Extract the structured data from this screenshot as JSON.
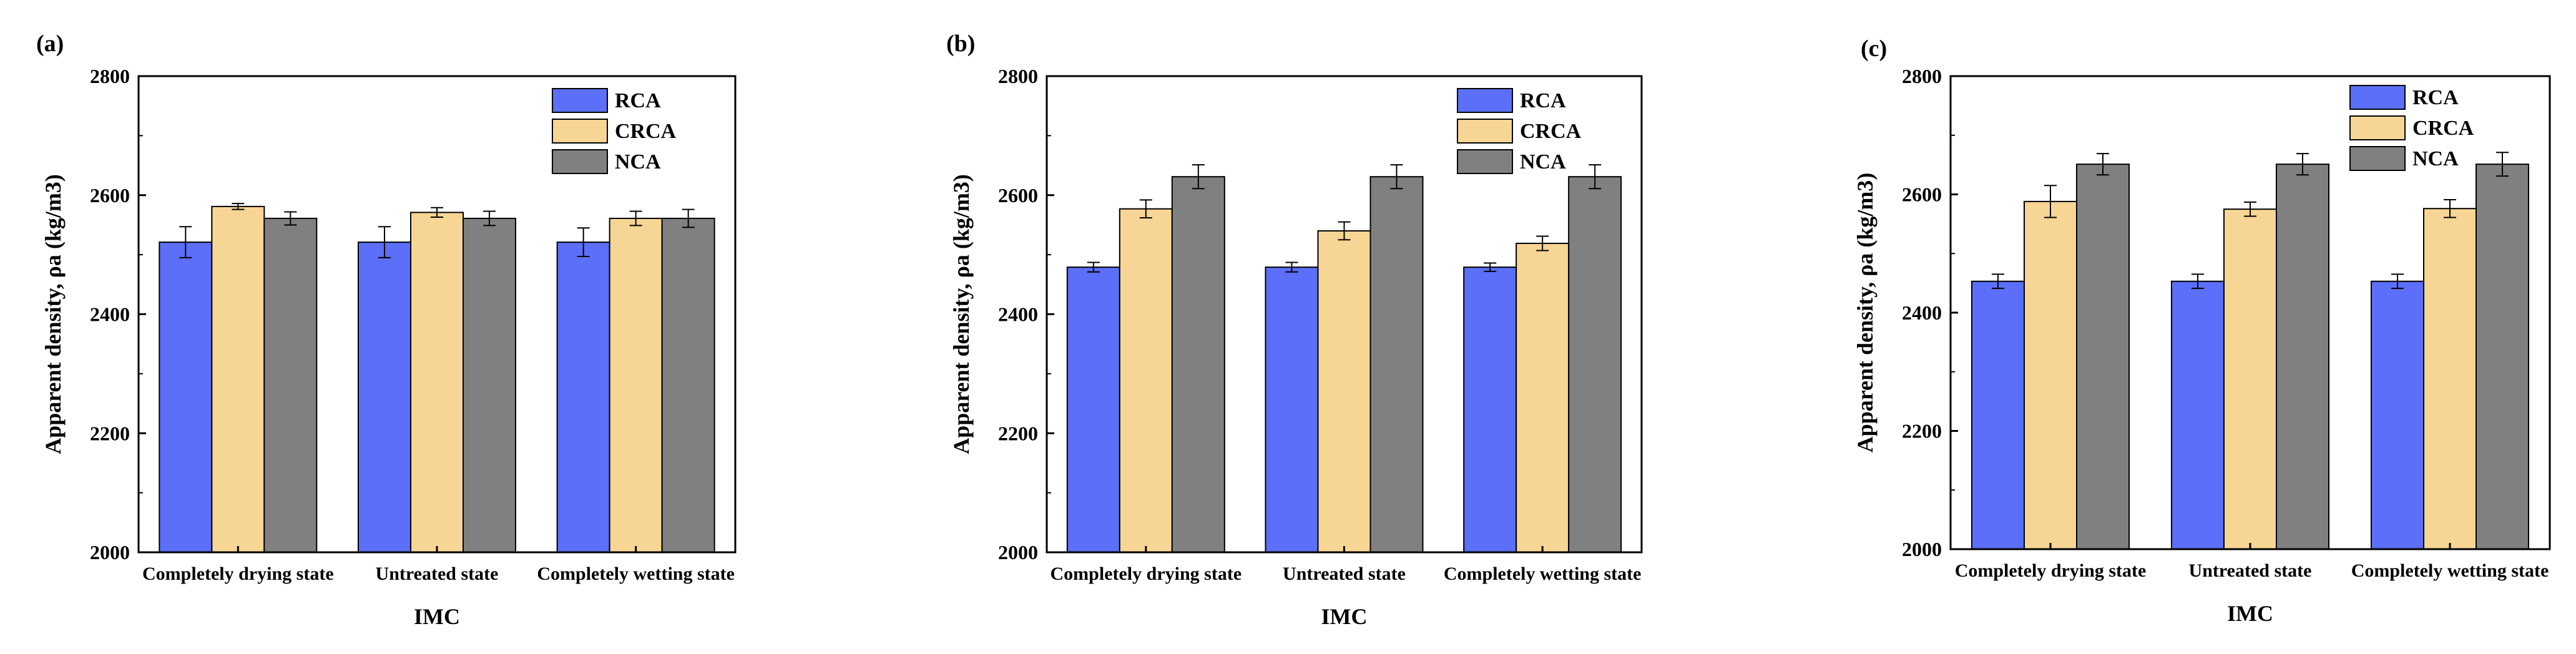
{
  "chart_data": [
    {
      "type": "bar",
      "panel": "(a)",
      "categories": [
        "Completely drying state",
        "Untreated state",
        "Completely wetting state"
      ],
      "series": [
        {
          "name": "RCA",
          "values": [
            2521,
            2521,
            2521
          ],
          "errors": [
            26,
            26,
            24
          ]
        },
        {
          "name": "CRCA",
          "values": [
            2581,
            2571,
            2561
          ],
          "errors": [
            5,
            8,
            12
          ]
        },
        {
          "name": "NCA",
          "values": [
            2561,
            2561,
            2561
          ],
          "errors": [
            11,
            12,
            15
          ]
        }
      ],
      "xlabel": "IMC",
      "ylabel": "Apparent density, ρa (kg/m3)",
      "ylim": [
        2000,
        2800
      ],
      "yticks": [
        "2000",
        "2200",
        "2400",
        "2600",
        "2800"
      ]
    },
    {
      "type": "bar",
      "panel": "(b)",
      "categories": [
        "Completely drying state",
        "Untreated state",
        "Completely wetting state"
      ],
      "series": [
        {
          "name": "RCA",
          "values": [
            2479,
            2479,
            2479
          ],
          "errors": [
            8,
            8,
            7
          ]
        },
        {
          "name": "CRCA",
          "values": [
            2577,
            2540,
            2519
          ],
          "errors": [
            15,
            15,
            12
          ]
        },
        {
          "name": "NCA",
          "values": [
            2631,
            2631,
            2631
          ],
          "errors": [
            20,
            20,
            20
          ]
        }
      ],
      "xlabel": "IMC",
      "ylabel": "Apparent density, ρa (kg/m3)",
      "ylim": [
        2000,
        2800
      ],
      "yticks": [
        "2000",
        "2200",
        "2400",
        "2600",
        "2800"
      ]
    },
    {
      "type": "bar",
      "panel": "(c)",
      "categories": [
        "Completely drying state",
        "Untreated state",
        "Completely wetting state"
      ],
      "series": [
        {
          "name": "RCA",
          "values": [
            2453,
            2453,
            2453
          ],
          "errors": [
            12,
            12,
            12
          ]
        },
        {
          "name": "CRCA",
          "values": [
            2588,
            2575,
            2576
          ],
          "errors": [
            27,
            12,
            15
          ]
        },
        {
          "name": "NCA",
          "values": [
            2651,
            2651,
            2651
          ],
          "errors": [
            18,
            18,
            20
          ]
        }
      ],
      "xlabel": "IMC",
      "ylabel": "Apparent density, ρa (kg/m3)",
      "ylim": [
        2000,
        2800
      ],
      "yticks": [
        "2000",
        "2200",
        "2400",
        "2600",
        "2800"
      ]
    }
  ],
  "colors": {
    "RCA": "#5B6FF8",
    "CRCA": "#F7D594",
    "NCA": "#808080",
    "axis": "#000000"
  }
}
